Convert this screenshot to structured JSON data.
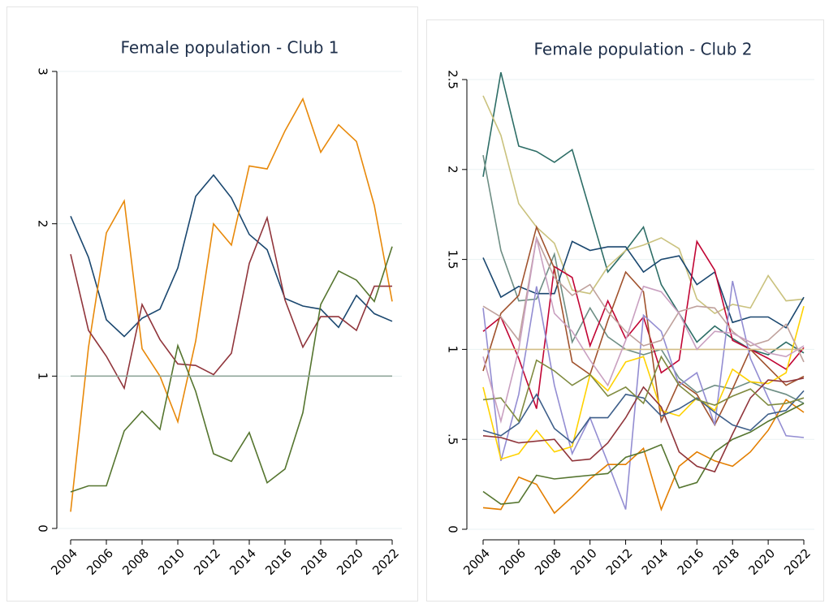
{
  "chart_data": [
    {
      "type": "line",
      "title": "Female population - Club 1",
      "x": [
        2004,
        2005,
        2006,
        2007,
        2008,
        2009,
        2010,
        2011,
        2012,
        2013,
        2014,
        2015,
        2016,
        2017,
        2018,
        2019,
        2020,
        2021,
        2022
      ],
      "xlim": [
        2004,
        2022
      ],
      "xticks": [
        2004,
        2006,
        2008,
        2010,
        2012,
        2014,
        2016,
        2018,
        2020,
        2022
      ],
      "ylim": [
        0,
        3
      ],
      "yticks": [
        0,
        1,
        2,
        3
      ],
      "grid": true,
      "series": [
        {
          "color": "#1a476f",
          "values": [
            2.05,
            1.78,
            1.37,
            1.26,
            1.38,
            1.44,
            1.71,
            2.18,
            2.32,
            2.17,
            1.93,
            1.83,
            1.51,
            1.46,
            1.44,
            1.32,
            1.53,
            1.41,
            1.36
          ]
        },
        {
          "color": "#e8890a",
          "values": [
            0.11,
            1.19,
            1.94,
            2.15,
            1.18,
            1.0,
            0.7,
            1.23,
            2.0,
            1.86,
            2.38,
            2.36,
            2.61,
            2.82,
            2.47,
            2.65,
            2.54,
            2.12,
            1.49
          ]
        },
        {
          "color": "#90353b",
          "values": [
            1.8,
            1.3,
            1.13,
            0.92,
            1.47,
            1.24,
            1.08,
            1.07,
            1.01,
            1.15,
            1.74,
            2.04,
            1.5,
            1.19,
            1.39,
            1.39,
            1.3,
            1.59,
            1.59
          ]
        },
        {
          "color": "#55752f",
          "values": [
            0.24,
            0.28,
            0.28,
            0.64,
            0.77,
            0.65,
            1.2,
            0.9,
            0.49,
            0.44,
            0.63,
            0.3,
            0.39,
            0.76,
            1.47,
            1.69,
            1.63,
            1.49,
            1.85
          ]
        },
        {
          "color": "#8fa69a",
          "values": [
            1,
            1,
            1,
            1,
            1,
            1,
            1,
            1,
            1,
            1,
            1,
            1,
            1,
            1,
            1,
            1,
            1,
            1,
            1
          ]
        }
      ]
    },
    {
      "type": "line",
      "title": "Female population - Club 2",
      "x": [
        2004,
        2005,
        2006,
        2007,
        2008,
        2009,
        2010,
        2011,
        2012,
        2013,
        2014,
        2015,
        2016,
        2017,
        2018,
        2019,
        2020,
        2021,
        2022
      ],
      "xlim": [
        2004,
        2022
      ],
      "xticks": [
        2004,
        2006,
        2008,
        2010,
        2012,
        2014,
        2016,
        2018,
        2020,
        2022
      ],
      "ylim": [
        0,
        2.5
      ],
      "yticks": [
        0,
        {
          "value": 0.5,
          "label": ".5"
        },
        1,
        1.5,
        2,
        2.5
      ],
      "grid": true,
      "series": [
        {
          "color": "#2d6d66",
          "values": [
            1.96,
            2.54,
            2.13,
            2.1,
            2.04,
            2.11,
            1.77,
            1.43,
            1.55,
            1.68,
            1.36,
            1.2,
            1.04,
            1.13,
            1.06,
            1.0,
            0.97,
            1.04,
            0.98
          ]
        },
        {
          "color": "#cac27e",
          "values": [
            2.41,
            2.19,
            1.81,
            1.68,
            1.59,
            1.33,
            1.31,
            1.46,
            1.55,
            1.58,
            1.62,
            1.56,
            1.28,
            1.2,
            1.25,
            1.23,
            1.41,
            1.27,
            1.28
          ]
        },
        {
          "color": "#6e8e84",
          "values": [
            2.08,
            1.55,
            1.27,
            1.28,
            1.53,
            1.04,
            1.23,
            1.07,
            1.0,
            0.97,
            1.0,
            0.84,
            0.76,
            0.8,
            0.78,
            0.82,
            0.78,
            0.75,
            0.7
          ]
        },
        {
          "color": "#1a476f",
          "values": [
            1.51,
            1.29,
            1.35,
            1.31,
            1.31,
            1.6,
            1.55,
            1.57,
            1.57,
            1.43,
            1.5,
            1.52,
            1.36,
            1.43,
            1.15,
            1.18,
            1.18,
            1.12,
            1.29
          ]
        },
        {
          "color": "#c10534",
          "values": [
            1.1,
            1.18,
            0.95,
            0.67,
            1.46,
            1.4,
            1.02,
            1.27,
            1.06,
            1.18,
            0.87,
            0.94,
            1.6,
            1.44,
            1.05,
            1.0,
            0.95,
            0.89,
            1.01
          ]
        },
        {
          "color": "#a0522d",
          "values": [
            0.88,
            1.2,
            1.3,
            1.68,
            1.45,
            0.93,
            0.86,
            1.16,
            1.43,
            1.32,
            0.6,
            0.82,
            0.75,
            0.58,
            0.78,
            1.0,
            0.9,
            0.8,
            0.85
          ]
        },
        {
          "color": "#938dd2",
          "values": [
            1.23,
            0.38,
            0.75,
            1.35,
            0.8,
            0.42,
            0.62,
            0.37,
            0.11,
            1.19,
            1.1,
            0.8,
            0.87,
            0.58,
            1.38,
            0.95,
            0.73,
            0.52,
            0.51
          ]
        },
        {
          "color": "#e37e00",
          "values": [
            0.12,
            0.11,
            0.29,
            0.25,
            0.09,
            0.18,
            0.28,
            0.36,
            0.36,
            0.45,
            0.11,
            0.35,
            0.43,
            0.38,
            0.35,
            0.43,
            0.55,
            0.72,
            0.65
          ]
        },
        {
          "color": "#55752f",
          "values": [
            0.21,
            0.14,
            0.15,
            0.3,
            0.28,
            0.29,
            0.3,
            0.31,
            0.4,
            0.43,
            0.47,
            0.23,
            0.26,
            0.43,
            0.5,
            0.54,
            0.6,
            0.65,
            0.7
          ]
        },
        {
          "color": "#ffd200",
          "values": [
            0.79,
            0.39,
            0.42,
            0.55,
            0.43,
            0.46,
            0.86,
            0.77,
            0.93,
            0.96,
            0.66,
            0.63,
            0.73,
            0.66,
            0.89,
            0.82,
            0.81,
            0.87,
            1.24
          ]
        },
        {
          "color": "#90353b",
          "values": [
            0.52,
            0.51,
            0.48,
            0.49,
            0.5,
            0.38,
            0.39,
            0.48,
            0.62,
            0.79,
            0.68,
            0.43,
            0.35,
            0.32,
            0.53,
            0.73,
            0.83,
            0.82,
            0.84
          ]
        },
        {
          "color": "#3e5f8a",
          "values": [
            0.55,
            0.52,
            0.59,
            0.75,
            0.56,
            0.48,
            0.62,
            0.62,
            0.75,
            0.73,
            0.63,
            0.67,
            0.73,
            0.65,
            0.58,
            0.55,
            0.64,
            0.66,
            0.77
          ]
        },
        {
          "color": "#bfa19c",
          "values": [
            1.24,
            1.18,
            1.05,
            1.62,
            1.4,
            1.3,
            1.36,
            1.21,
            1.1,
            1.02,
            1.05,
            1.21,
            1.24,
            1.23,
            1.1,
            1.02,
            1.05,
            1.14,
            0.93
          ]
        },
        {
          "color": "#d2bd86",
          "values": [
            1,
            1,
            1,
            1,
            1,
            1,
            1,
            1,
            1,
            1,
            1,
            1,
            1,
            1,
            1,
            1,
            1,
            1,
            1
          ]
        },
        {
          "color": "#7f8a3f",
          "values": [
            0.72,
            0.73,
            0.6,
            0.94,
            0.88,
            0.8,
            0.86,
            0.74,
            0.79,
            0.7,
            0.96,
            0.8,
            0.72,
            0.69,
            0.74,
            0.78,
            0.69,
            0.7,
            0.73
          ]
        },
        {
          "color": "#c9a0c0",
          "values": [
            0.96,
            0.6,
            1.0,
            1.62,
            1.2,
            1.1,
            0.94,
            0.8,
            1.05,
            1.35,
            1.32,
            1.2,
            1.0,
            1.1,
            1.09,
            1.04,
            0.98,
            0.96,
            1.02
          ]
        }
      ]
    }
  ]
}
